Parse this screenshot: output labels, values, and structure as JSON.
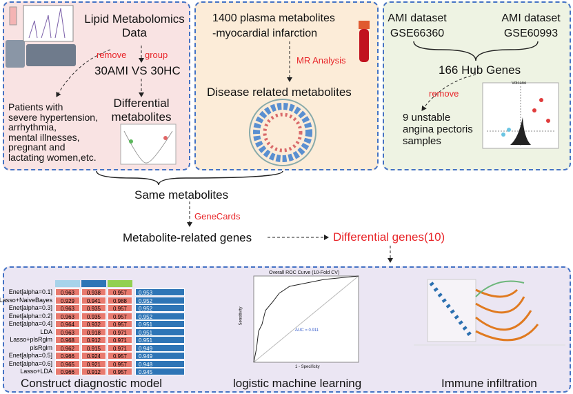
{
  "panels": {
    "lipid": {
      "title": [
        "Lipid Metabolomics",
        "Data"
      ],
      "remove": "remove",
      "group": "group",
      "comparison": "30AMI VS 30HC",
      "excluded": [
        "Patients with",
        "severe hypertension,",
        "arrhythmia,",
        "mental illnesses,",
        "pregnant and",
        "lactating women,etc."
      ],
      "result": [
        "Differential",
        "metabolites"
      ]
    },
    "mr": {
      "title": [
        "1400 plasma metabolites",
        "-myocardial infarction"
      ],
      "method": "MR Analysis",
      "result": "Disease related metabolites"
    },
    "genes": {
      "dataset1": [
        "AMI dataset",
        "GSE66360"
      ],
      "dataset2": [
        "AMI dataset",
        "GSE60993"
      ],
      "hub": "166 Hub Genes",
      "remove": "remove",
      "excluded": [
        "9 unstable",
        "angina pectoris",
        "samples"
      ],
      "plot_title": "Volcano"
    }
  },
  "flow": {
    "same": "Same metabolites",
    "source": "GeneCards",
    "related": "Metabolite-related genes",
    "differential": "Differential genes(10)"
  },
  "table": {
    "rows": [
      [
        "Enet[alpha=0.1]",
        "0.963",
        "0.938",
        "0.957",
        "0.953"
      ],
      [
        "Lasso+NaiveBayes",
        "0.929",
        "0.941",
        "0.988",
        "0.952"
      ],
      [
        "Enet[alpha=0.3]",
        "0.963",
        "0.935",
        "0.957",
        "0.952"
      ],
      [
        "Enet[alpha=0.2]",
        "0.963",
        "0.935",
        "0.957",
        "0.952"
      ],
      [
        "Enet[alpha=0.4]",
        "0.964",
        "0.932",
        "0.957",
        "0.951"
      ],
      [
        "LDA",
        "0.963",
        "0.918",
        "0.971",
        "0.951"
      ],
      [
        "Lasso+plsRglm",
        "0.968",
        "0.912",
        "0.971",
        "0.951"
      ],
      [
        "plsRglm",
        "0.962",
        "0.915",
        "0.971",
        "0.949"
      ],
      [
        "Enet[alpha=0.5]",
        "0.966",
        "0.924",
        "0.957",
        "0.949"
      ],
      [
        "Enet[alpha=0.6]",
        "0.965",
        "0.921",
        "0.957",
        "0.948"
      ],
      [
        "Lasso+LDA",
        "0.966",
        "0.912",
        "0.957",
        "0.945"
      ]
    ]
  },
  "roc": {
    "title": "Overall ROC Curve (10-Fold CV)",
    "auc": "AUC = 0.911",
    "ylabel": "Sensitivity",
    "xlabel": "1 - Specificity"
  },
  "captions": {
    "model": "Construct diagnostic model",
    "ml": "logistic machine learning",
    "immune": "Immune infiltration"
  }
}
